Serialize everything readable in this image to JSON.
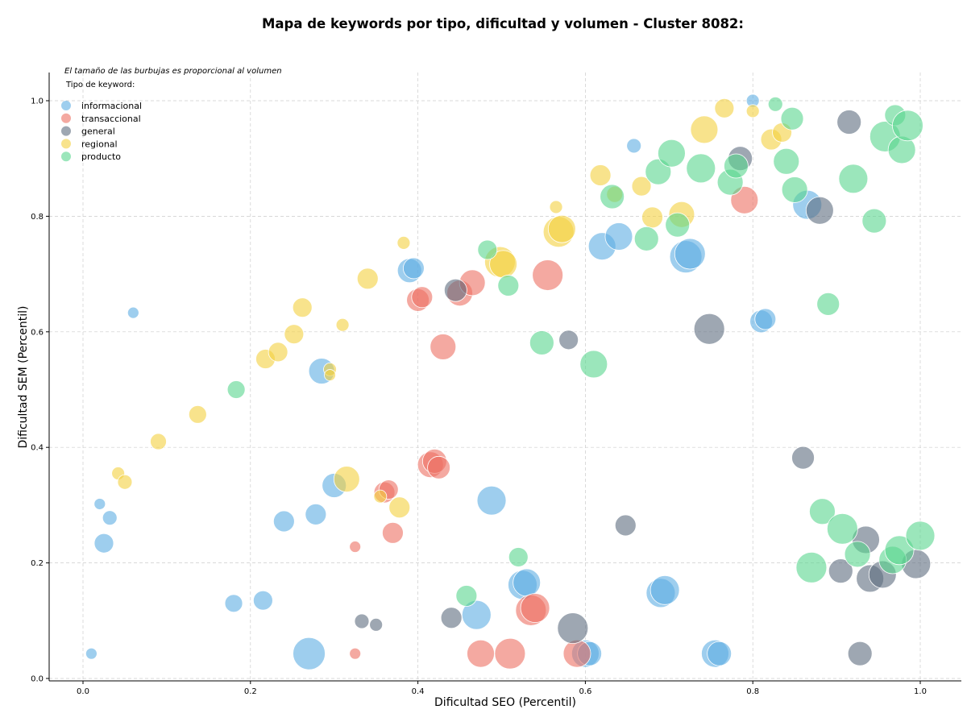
{
  "chart_data": {
    "type": "scatter",
    "title": "Mapa de keywords por tipo, dificultad y volumen - Cluster 8082:",
    "xlabel": "Dificultad SEO (Percentil)",
    "ylabel": "Dificultad SEM (Percentil)",
    "xlim": [
      -0.04,
      1.05
    ],
    "ylim": [
      -0.005,
      1.05
    ],
    "x_ticks": [
      "0.0",
      "0.2",
      "0.4",
      "0.6",
      "0.8",
      "1.0"
    ],
    "y_ticks": [
      "0.0",
      "0.2",
      "0.4",
      "0.6",
      "0.8",
      "1.0"
    ],
    "grid": true,
    "legend": {
      "note": "El tamaño de las burbujas es proporcional al volumen",
      "title": "Tipo de keyword:",
      "placement": "top-left",
      "entries": [
        "informacional",
        "transaccional",
        "general",
        "regional",
        "producto"
      ]
    },
    "colors": {
      "informacional": "#5dade2",
      "transaccional": "#ec7063",
      "general": "#5d6d7e",
      "regional": "#f4d03f",
      "producto": "#58d68d"
    },
    "series": [
      {
        "name": "informacional",
        "points": [
          {
            "x": 0.01,
            "y": 0.043,
            "s": 7
          },
          {
            "x": 0.06,
            "y": 0.633,
            "s": 7
          },
          {
            "x": 0.02,
            "y": 0.302,
            "s": 7
          },
          {
            "x": 0.032,
            "y": 0.278,
            "s": 9
          },
          {
            "x": 0.025,
            "y": 0.234,
            "s": 12
          },
          {
            "x": 0.18,
            "y": 0.13,
            "s": 11
          },
          {
            "x": 0.215,
            "y": 0.135,
            "s": 12
          },
          {
            "x": 0.24,
            "y": 0.272,
            "s": 13
          },
          {
            "x": 0.27,
            "y": 0.043,
            "s": 20
          },
          {
            "x": 0.278,
            "y": 0.284,
            "s": 13
          },
          {
            "x": 0.285,
            "y": 0.532,
            "s": 16
          },
          {
            "x": 0.3,
            "y": 0.334,
            "s": 15
          },
          {
            "x": 0.39,
            "y": 0.706,
            "s": 15
          },
          {
            "x": 0.395,
            "y": 0.71,
            "s": 13
          },
          {
            "x": 0.47,
            "y": 0.11,
            "s": 18
          },
          {
            "x": 0.488,
            "y": 0.308,
            "s": 18
          },
          {
            "x": 0.525,
            "y": 0.162,
            "s": 18
          },
          {
            "x": 0.53,
            "y": 0.166,
            "s": 17
          },
          {
            "x": 0.6,
            "y": 0.043,
            "s": 17
          },
          {
            "x": 0.605,
            "y": 0.043,
            "s": 15
          },
          {
            "x": 0.62,
            "y": 0.748,
            "s": 17
          },
          {
            "x": 0.64,
            "y": 0.765,
            "s": 17
          },
          {
            "x": 0.658,
            "y": 0.922,
            "s": 9
          },
          {
            "x": 0.69,
            "y": 0.148,
            "s": 18
          },
          {
            "x": 0.695,
            "y": 0.153,
            "s": 18
          },
          {
            "x": 0.72,
            "y": 0.73,
            "s": 20
          },
          {
            "x": 0.725,
            "y": 0.735,
            "s": 19
          },
          {
            "x": 0.755,
            "y": 0.043,
            "s": 17
          },
          {
            "x": 0.76,
            "y": 0.043,
            "s": 15
          },
          {
            "x": 0.8,
            "y": 1.0,
            "s": 8
          },
          {
            "x": 0.81,
            "y": 0.618,
            "s": 14
          },
          {
            "x": 0.815,
            "y": 0.622,
            "s": 13
          },
          {
            "x": 0.865,
            "y": 0.82,
            "s": 18
          }
        ]
      },
      {
        "name": "transaccional",
        "points": [
          {
            "x": 0.325,
            "y": 0.228,
            "s": 7
          },
          {
            "x": 0.325,
            "y": 0.043,
            "s": 7
          },
          {
            "x": 0.36,
            "y": 0.322,
            "s": 13
          },
          {
            "x": 0.365,
            "y": 0.327,
            "s": 12
          },
          {
            "x": 0.37,
            "y": 0.252,
            "s": 13
          },
          {
            "x": 0.4,
            "y": 0.655,
            "s": 14
          },
          {
            "x": 0.405,
            "y": 0.66,
            "s": 13
          },
          {
            "x": 0.415,
            "y": 0.37,
            "s": 16
          },
          {
            "x": 0.42,
            "y": 0.376,
            "s": 15
          },
          {
            "x": 0.425,
            "y": 0.365,
            "s": 14
          },
          {
            "x": 0.43,
            "y": 0.574,
            "s": 16
          },
          {
            "x": 0.45,
            "y": 0.667,
            "s": 16
          },
          {
            "x": 0.465,
            "y": 0.685,
            "s": 16
          },
          {
            "x": 0.475,
            "y": 0.043,
            "s": 17
          },
          {
            "x": 0.51,
            "y": 0.043,
            "s": 19
          },
          {
            "x": 0.535,
            "y": 0.118,
            "s": 19
          },
          {
            "x": 0.54,
            "y": 0.122,
            "s": 18
          },
          {
            "x": 0.555,
            "y": 0.698,
            "s": 19
          },
          {
            "x": 0.59,
            "y": 0.043,
            "s": 17
          },
          {
            "x": 0.79,
            "y": 0.828,
            "s": 17
          }
        ]
      },
      {
        "name": "general",
        "points": [
          {
            "x": 0.333,
            "y": 0.099,
            "s": 9
          },
          {
            "x": 0.35,
            "y": 0.093,
            "s": 8
          },
          {
            "x": 0.44,
            "y": 0.105,
            "s": 13
          },
          {
            "x": 0.445,
            "y": 0.672,
            "s": 14
          },
          {
            "x": 0.585,
            "y": 0.087,
            "s": 19
          },
          {
            "x": 0.58,
            "y": 0.586,
            "s": 12
          },
          {
            "x": 0.648,
            "y": 0.265,
            "s": 13
          },
          {
            "x": 0.748,
            "y": 0.605,
            "s": 19
          },
          {
            "x": 0.785,
            "y": 0.9,
            "s": 15
          },
          {
            "x": 0.86,
            "y": 0.382,
            "s": 14
          },
          {
            "x": 0.88,
            "y": 0.81,
            "s": 17
          },
          {
            "x": 0.905,
            "y": 0.186,
            "s": 15
          },
          {
            "x": 0.915,
            "y": 0.963,
            "s": 15
          },
          {
            "x": 0.928,
            "y": 0.043,
            "s": 15
          },
          {
            "x": 0.935,
            "y": 0.24,
            "s": 17
          },
          {
            "x": 0.94,
            "y": 0.173,
            "s": 17
          },
          {
            "x": 0.955,
            "y": 0.18,
            "s": 17
          },
          {
            "x": 0.995,
            "y": 0.198,
            "s": 18
          }
        ]
      },
      {
        "name": "regional",
        "points": [
          {
            "x": 0.042,
            "y": 0.355,
            "s": 8
          },
          {
            "x": 0.05,
            "y": 0.34,
            "s": 9
          },
          {
            "x": 0.09,
            "y": 0.41,
            "s": 10
          },
          {
            "x": 0.137,
            "y": 0.457,
            "s": 11
          },
          {
            "x": 0.218,
            "y": 0.553,
            "s": 12
          },
          {
            "x": 0.233,
            "y": 0.565,
            "s": 12
          },
          {
            "x": 0.252,
            "y": 0.596,
            "s": 12
          },
          {
            "x": 0.262,
            "y": 0.642,
            "s": 12
          },
          {
            "x": 0.295,
            "y": 0.535,
            "s": 8
          },
          {
            "x": 0.295,
            "y": 0.525,
            "s": 7
          },
          {
            "x": 0.31,
            "y": 0.612,
            "s": 8
          },
          {
            "x": 0.315,
            "y": 0.345,
            "s": 16
          },
          {
            "x": 0.34,
            "y": 0.692,
            "s": 13
          },
          {
            "x": 0.355,
            "y": 0.315,
            "s": 8
          },
          {
            "x": 0.378,
            "y": 0.296,
            "s": 13
          },
          {
            "x": 0.383,
            "y": 0.754,
            "s": 8
          },
          {
            "x": 0.498,
            "y": 0.721,
            "s": 19
          },
          {
            "x": 0.502,
            "y": 0.717,
            "s": 17
          },
          {
            "x": 0.565,
            "y": 0.816,
            "s": 8
          },
          {
            "x": 0.568,
            "y": 0.773,
            "s": 19
          },
          {
            "x": 0.572,
            "y": 0.778,
            "s": 17
          },
          {
            "x": 0.618,
            "y": 0.871,
            "s": 13
          },
          {
            "x": 0.635,
            "y": 0.838,
            "s": 10
          },
          {
            "x": 0.667,
            "y": 0.852,
            "s": 12
          },
          {
            "x": 0.68,
            "y": 0.798,
            "s": 13
          },
          {
            "x": 0.715,
            "y": 0.803,
            "s": 16
          },
          {
            "x": 0.742,
            "y": 0.95,
            "s": 17
          },
          {
            "x": 0.766,
            "y": 0.987,
            "s": 12
          },
          {
            "x": 0.8,
            "y": 0.982,
            "s": 8
          },
          {
            "x": 0.822,
            "y": 0.933,
            "s": 13
          },
          {
            "x": 0.835,
            "y": 0.945,
            "s": 12
          }
        ]
      },
      {
        "name": "producto",
        "points": [
          {
            "x": 0.183,
            "y": 0.5,
            "s": 11
          },
          {
            "x": 0.458,
            "y": 0.143,
            "s": 13
          },
          {
            "x": 0.483,
            "y": 0.742,
            "s": 12
          },
          {
            "x": 0.52,
            "y": 0.21,
            "s": 12
          },
          {
            "x": 0.508,
            "y": 0.68,
            "s": 13
          },
          {
            "x": 0.548,
            "y": 0.581,
            "s": 15
          },
          {
            "x": 0.61,
            "y": 0.544,
            "s": 17
          },
          {
            "x": 0.632,
            "y": 0.834,
            "s": 15
          },
          {
            "x": 0.673,
            "y": 0.761,
            "s": 15
          },
          {
            "x": 0.687,
            "y": 0.877,
            "s": 16
          },
          {
            "x": 0.703,
            "y": 0.909,
            "s": 17
          },
          {
            "x": 0.71,
            "y": 0.785,
            "s": 15
          },
          {
            "x": 0.738,
            "y": 0.883,
            "s": 18
          },
          {
            "x": 0.773,
            "y": 0.859,
            "s": 16
          },
          {
            "x": 0.78,
            "y": 0.887,
            "s": 15
          },
          {
            "x": 0.827,
            "y": 0.994,
            "s": 9
          },
          {
            "x": 0.84,
            "y": 0.895,
            "s": 16
          },
          {
            "x": 0.847,
            "y": 0.969,
            "s": 14
          },
          {
            "x": 0.85,
            "y": 0.846,
            "s": 16
          },
          {
            "x": 0.87,
            "y": 0.192,
            "s": 19
          },
          {
            "x": 0.883,
            "y": 0.289,
            "s": 16
          },
          {
            "x": 0.89,
            "y": 0.648,
            "s": 14
          },
          {
            "x": 0.907,
            "y": 0.259,
            "s": 19
          },
          {
            "x": 0.92,
            "y": 0.865,
            "s": 18
          },
          {
            "x": 0.925,
            "y": 0.215,
            "s": 16
          },
          {
            "x": 0.945,
            "y": 0.792,
            "s": 15
          },
          {
            "x": 0.958,
            "y": 0.938,
            "s": 19
          },
          {
            "x": 0.967,
            "y": 0.205,
            "s": 17
          },
          {
            "x": 0.97,
            "y": 0.975,
            "s": 13
          },
          {
            "x": 0.975,
            "y": 0.222,
            "s": 18
          },
          {
            "x": 0.978,
            "y": 0.915,
            "s": 17
          },
          {
            "x": 0.985,
            "y": 0.957,
            "s": 19
          },
          {
            "x": 1.0,
            "y": 0.247,
            "s": 18
          }
        ]
      }
    ]
  }
}
